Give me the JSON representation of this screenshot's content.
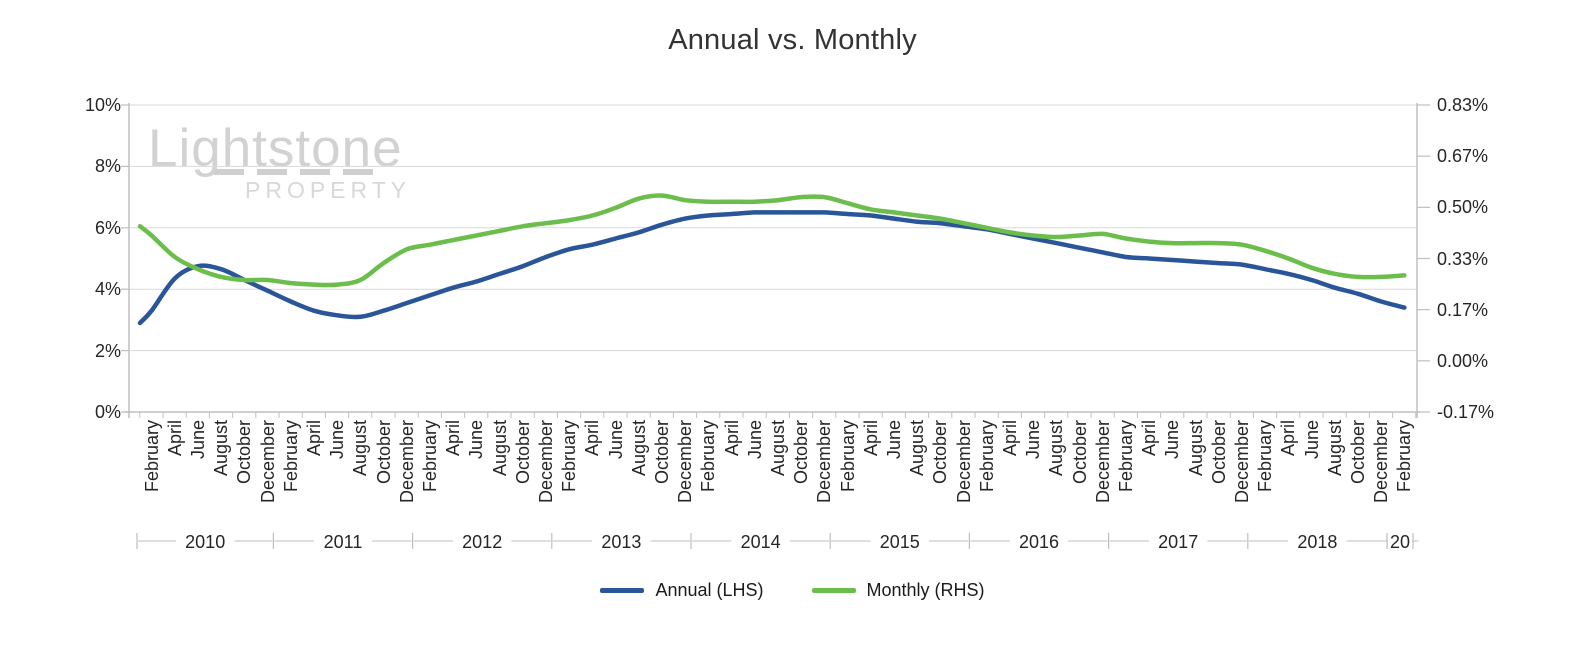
{
  "watermark": {
    "name": "Lightstone",
    "sub": "PROPERTY"
  },
  "chart_data": {
    "type": "line",
    "title": "Annual vs. Monthly",
    "grid": true,
    "legend_position": "bottom",
    "colors": {
      "annual": "#2a5699",
      "monthly": "#6cbe4c",
      "gridline": "#d9d9d9",
      "axis": "#bfbfbf",
      "tick_text": "#262626"
    },
    "left_axis": {
      "label_suffix": "%",
      "min": 0,
      "max": 10,
      "ticks": [
        "10%",
        "8%",
        "6%",
        "4%",
        "2%",
        "0%"
      ]
    },
    "right_axis": {
      "min": -0.17,
      "max": 0.83,
      "ticks": [
        "0.83%",
        "0.67%",
        "0.50%",
        "0.33%",
        "0.17%",
        "0.00%",
        "-0.17%"
      ]
    },
    "x_axis": {
      "unit": "months since Jan 2010",
      "tick_month_indices_start": 1,
      "tick_month_step": 2,
      "tick_labels": [
        "February",
        "April",
        "June",
        "August",
        "October",
        "December",
        "February",
        "April",
        "June",
        "August",
        "October",
        "December",
        "February",
        "April",
        "June",
        "August",
        "October",
        "December",
        "February",
        "April",
        "June",
        "August",
        "October",
        "December",
        "February",
        "April",
        "June",
        "August",
        "October",
        "December",
        "February",
        "April",
        "June",
        "August",
        "October",
        "December",
        "February",
        "April",
        "June",
        "August",
        "October",
        "December",
        "February",
        "April",
        "June",
        "August",
        "October",
        "December",
        "February",
        "April",
        "June",
        "August",
        "October",
        "December",
        "February"
      ],
      "year_labels": [
        "2010",
        "2011",
        "2012",
        "2013",
        "2014",
        "2015",
        "2016",
        "2017",
        "2018",
        "20"
      ]
    },
    "series": [
      {
        "name": "Annual (LHS)",
        "axis": "left",
        "color": "#2a5699",
        "points": [
          [
            0,
            2.9
          ],
          [
            1,
            3.3
          ],
          [
            3,
            4.35
          ],
          [
            5,
            4.75
          ],
          [
            7,
            4.65
          ],
          [
            9,
            4.3
          ],
          [
            11,
            3.95
          ],
          [
            13,
            3.6
          ],
          [
            15,
            3.3
          ],
          [
            17,
            3.15
          ],
          [
            19,
            3.1
          ],
          [
            21,
            3.3
          ],
          [
            23,
            3.55
          ],
          [
            25,
            3.8
          ],
          [
            27,
            4.05
          ],
          [
            29,
            4.25
          ],
          [
            31,
            4.5
          ],
          [
            33,
            4.75
          ],
          [
            35,
            5.05
          ],
          [
            37,
            5.3
          ],
          [
            39,
            5.45
          ],
          [
            41,
            5.65
          ],
          [
            43,
            5.85
          ],
          [
            45,
            6.1
          ],
          [
            47,
            6.3
          ],
          [
            49,
            6.4
          ],
          [
            51,
            6.45
          ],
          [
            53,
            6.5
          ],
          [
            55,
            6.5
          ],
          [
            57,
            6.5
          ],
          [
            59,
            6.5
          ],
          [
            61,
            6.45
          ],
          [
            63,
            6.4
          ],
          [
            65,
            6.3
          ],
          [
            67,
            6.2
          ],
          [
            69,
            6.15
          ],
          [
            71,
            6.05
          ],
          [
            73,
            5.95
          ],
          [
            75,
            5.8
          ],
          [
            77,
            5.65
          ],
          [
            79,
            5.5
          ],
          [
            81,
            5.35
          ],
          [
            83,
            5.2
          ],
          [
            85,
            5.05
          ],
          [
            87,
            5.0
          ],
          [
            89,
            4.95
          ],
          [
            91,
            4.9
          ],
          [
            93,
            4.85
          ],
          [
            95,
            4.8
          ],
          [
            97,
            4.65
          ],
          [
            99,
            4.5
          ],
          [
            101,
            4.3
          ],
          [
            103,
            4.05
          ],
          [
            105,
            3.85
          ],
          [
            107,
            3.6
          ],
          [
            109,
            3.4
          ]
        ]
      },
      {
        "name": "Monthly (RHS)",
        "axis": "right",
        "color": "#6cbe4c",
        "points": [
          [
            0,
            0.435
          ],
          [
            1,
            0.405
          ],
          [
            3,
            0.335
          ],
          [
            5,
            0.295
          ],
          [
            7,
            0.27
          ],
          [
            9,
            0.26
          ],
          [
            11,
            0.26
          ],
          [
            13,
            0.25
          ],
          [
            15,
            0.245
          ],
          [
            17,
            0.245
          ],
          [
            19,
            0.26
          ],
          [
            21,
            0.315
          ],
          [
            23,
            0.36
          ],
          [
            25,
            0.375
          ],
          [
            27,
            0.39
          ],
          [
            29,
            0.405
          ],
          [
            31,
            0.42
          ],
          [
            33,
            0.435
          ],
          [
            35,
            0.445
          ],
          [
            37,
            0.455
          ],
          [
            39,
            0.47
          ],
          [
            41,
            0.495
          ],
          [
            43,
            0.525
          ],
          [
            45,
            0.535
          ],
          [
            47,
            0.52
          ],
          [
            49,
            0.515
          ],
          [
            51,
            0.515
          ],
          [
            53,
            0.515
          ],
          [
            55,
            0.52
          ],
          [
            57,
            0.53
          ],
          [
            59,
            0.53
          ],
          [
            61,
            0.51
          ],
          [
            63,
            0.49
          ],
          [
            65,
            0.48
          ],
          [
            67,
            0.47
          ],
          [
            69,
            0.46
          ],
          [
            71,
            0.445
          ],
          [
            73,
            0.43
          ],
          [
            75,
            0.415
          ],
          [
            77,
            0.405
          ],
          [
            79,
            0.4
          ],
          [
            81,
            0.405
          ],
          [
            83,
            0.41
          ],
          [
            85,
            0.395
          ],
          [
            87,
            0.385
          ],
          [
            89,
            0.38
          ],
          [
            91,
            0.38
          ],
          [
            93,
            0.38
          ],
          [
            95,
            0.375
          ],
          [
            97,
            0.355
          ],
          [
            99,
            0.33
          ],
          [
            101,
            0.3
          ],
          [
            103,
            0.28
          ],
          [
            105,
            0.27
          ],
          [
            107,
            0.27
          ],
          [
            109,
            0.275
          ]
        ]
      }
    ]
  }
}
